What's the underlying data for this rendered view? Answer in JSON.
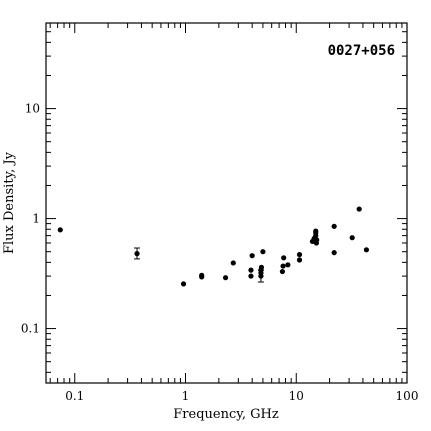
{
  "chart_data": {
    "type": "scatter",
    "title": "",
    "annotation": "0027+056",
    "xlabel": "Frequency, GHz",
    "ylabel": "Flux Density, Jy",
    "xscale": "log",
    "yscale": "log",
    "xlim": [
      0.055,
      100
    ],
    "ylim": [
      0.032,
      60
    ],
    "grid": false,
    "x_ticks": [
      {
        "value": 0.1,
        "label": "0.1"
      },
      {
        "value": 1,
        "label": "1"
      },
      {
        "value": 10,
        "label": "10"
      },
      {
        "value": 100,
        "label": "100"
      }
    ],
    "y_ticks": [
      {
        "value": 0.1,
        "label": "0.1"
      },
      {
        "value": 1,
        "label": "1"
      },
      {
        "value": 10,
        "label": "10"
      }
    ],
    "points": [
      {
        "x": 0.074,
        "y": 0.79
      },
      {
        "x": 0.365,
        "y": 0.48,
        "err": [
          0.43,
          0.54
        ]
      },
      {
        "x": 0.96,
        "y": 0.255
      },
      {
        "x": 1.4,
        "y": 0.295
      },
      {
        "x": 1.4,
        "y": 0.305
      },
      {
        "x": 2.3,
        "y": 0.29
      },
      {
        "x": 2.7,
        "y": 0.395
      },
      {
        "x": 3.9,
        "y": 0.3
      },
      {
        "x": 3.9,
        "y": 0.34
      },
      {
        "x": 4.0,
        "y": 0.46
      },
      {
        "x": 4.8,
        "y": 0.3,
        "err": [
          0.265,
          0.34
        ]
      },
      {
        "x": 4.8,
        "y": 0.32
      },
      {
        "x": 4.8,
        "y": 0.34
      },
      {
        "x": 4.85,
        "y": 0.36
      },
      {
        "x": 5.0,
        "y": 0.5
      },
      {
        "x": 7.5,
        "y": 0.33
      },
      {
        "x": 7.6,
        "y": 0.37
      },
      {
        "x": 7.7,
        "y": 0.44
      },
      {
        "x": 8.4,
        "y": 0.38
      },
      {
        "x": 10.7,
        "y": 0.42
      },
      {
        "x": 10.7,
        "y": 0.47
      },
      {
        "x": 14.0,
        "y": 0.62
      },
      {
        "x": 14.5,
        "y": 0.66
      },
      {
        "x": 15.0,
        "y": 0.7
      },
      {
        "x": 15.0,
        "y": 0.74
      },
      {
        "x": 15.0,
        "y": 0.77
      },
      {
        "x": 15.2,
        "y": 0.6
      },
      {
        "x": 15.3,
        "y": 0.64
      },
      {
        "x": 22.0,
        "y": 0.85
      },
      {
        "x": 22.0,
        "y": 0.49
      },
      {
        "x": 32.0,
        "y": 0.67
      },
      {
        "x": 37.0,
        "y": 1.22
      },
      {
        "x": 43.0,
        "y": 0.52
      }
    ]
  }
}
